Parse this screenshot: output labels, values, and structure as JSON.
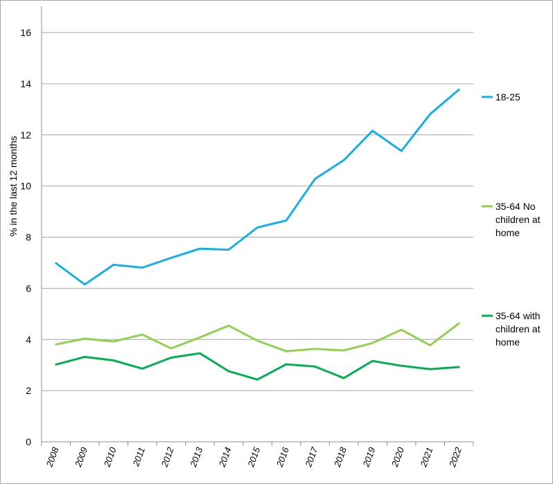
{
  "chart_data": {
    "type": "line",
    "title": "",
    "xlabel": "",
    "ylabel": "% in the last 12 months",
    "ylim": [
      0,
      16
    ],
    "yticks": [
      0,
      2,
      4,
      6,
      8,
      10,
      12,
      14,
      16
    ],
    "grid": true,
    "legend_position": "right",
    "categories": [
      "2008",
      "2009",
      "2010",
      "2011",
      "2012",
      "2013",
      "2014",
      "2015",
      "2016",
      "2017",
      "2018",
      "2019",
      "2020",
      "2021",
      "2022"
    ],
    "series": [
      {
        "name": "18-25",
        "color": "#16aee8",
        "legend_lines": [
          "18-25"
        ],
        "values": [
          6.98,
          6.15,
          6.92,
          6.81,
          7.19,
          7.55,
          7.51,
          8.38,
          8.65,
          10.28,
          11.01,
          12.16,
          11.37,
          12.81,
          13.77
        ]
      },
      {
        "name": "35-64 No children at home",
        "color": "#92d050",
        "legend_lines": [
          "35-64 No",
          "children at",
          "home"
        ],
        "values": [
          3.81,
          4.03,
          3.92,
          4.19,
          3.65,
          4.08,
          4.54,
          3.95,
          3.54,
          3.63,
          3.57,
          3.86,
          4.38,
          3.77,
          4.63
        ]
      },
      {
        "name": "35-64 with children at home",
        "color": "#00b050",
        "legend_lines": [
          "35-64 with",
          "children at",
          "home"
        ],
        "values": [
          3.02,
          3.32,
          3.18,
          2.86,
          3.29,
          3.46,
          2.76,
          2.43,
          3.03,
          2.94,
          2.49,
          3.16,
          2.97,
          2.84,
          2.92
        ]
      }
    ]
  }
}
